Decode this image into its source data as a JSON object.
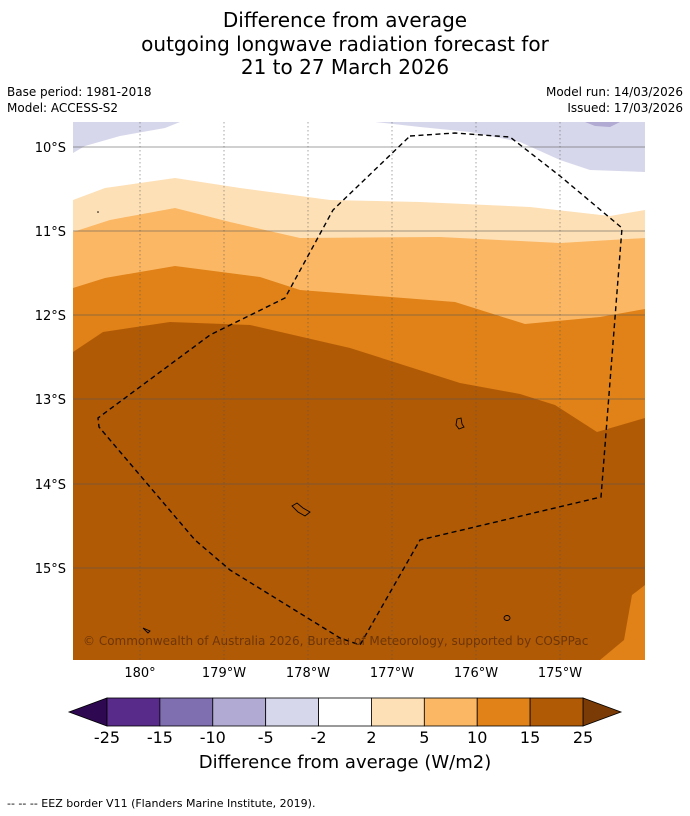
{
  "title": {
    "line1": "Difference from average",
    "line2": "outgoing longwave radiation forecast for",
    "line3": "21 to 27 March 2026"
  },
  "meta": {
    "base_period": "Base period: 1981-2018",
    "model": "Model: ACCESS-S2",
    "model_run": "Model run: 14/03/2026",
    "issued": "Issued: 17/03/2026"
  },
  "map": {
    "lat_labels": [
      "10°S",
      "11°S",
      "12°S",
      "13°S",
      "14°S",
      "15°S"
    ],
    "lon_labels": [
      "180°",
      "179°W",
      "178°W",
      "177°W",
      "176°W",
      "175°W"
    ],
    "copyright": "© Commonwealth of Australia 2026, Bureau of Meteorology, supported by COSPPac",
    "colors": {
      "lt_purple": "#d7d7eb",
      "white": "#ffffff",
      "peach": "#fde0b6",
      "lt_orange": "#fbb764",
      "orange": "#e08217",
      "brown": "#b15a06"
    }
  },
  "colorbar": {
    "ticks": [
      "-25",
      "-15",
      "-10",
      "-5",
      "-2",
      "2",
      "5",
      "10",
      "15",
      "25"
    ],
    "colors": [
      "#582a8a",
      "#7f6fb0",
      "#b1aad2",
      "#d7d7eb",
      "#ffffff",
      "#fde0b6",
      "#fbb764",
      "#e08217",
      "#b15a06"
    ],
    "extend_low": "#2e0952",
    "extend_high": "#7a3b06",
    "label": "Difference from average (W/m2)"
  },
  "footnote": "--  --  -- EEZ border V11 (Flanders Marine Institute, 2019)."
}
